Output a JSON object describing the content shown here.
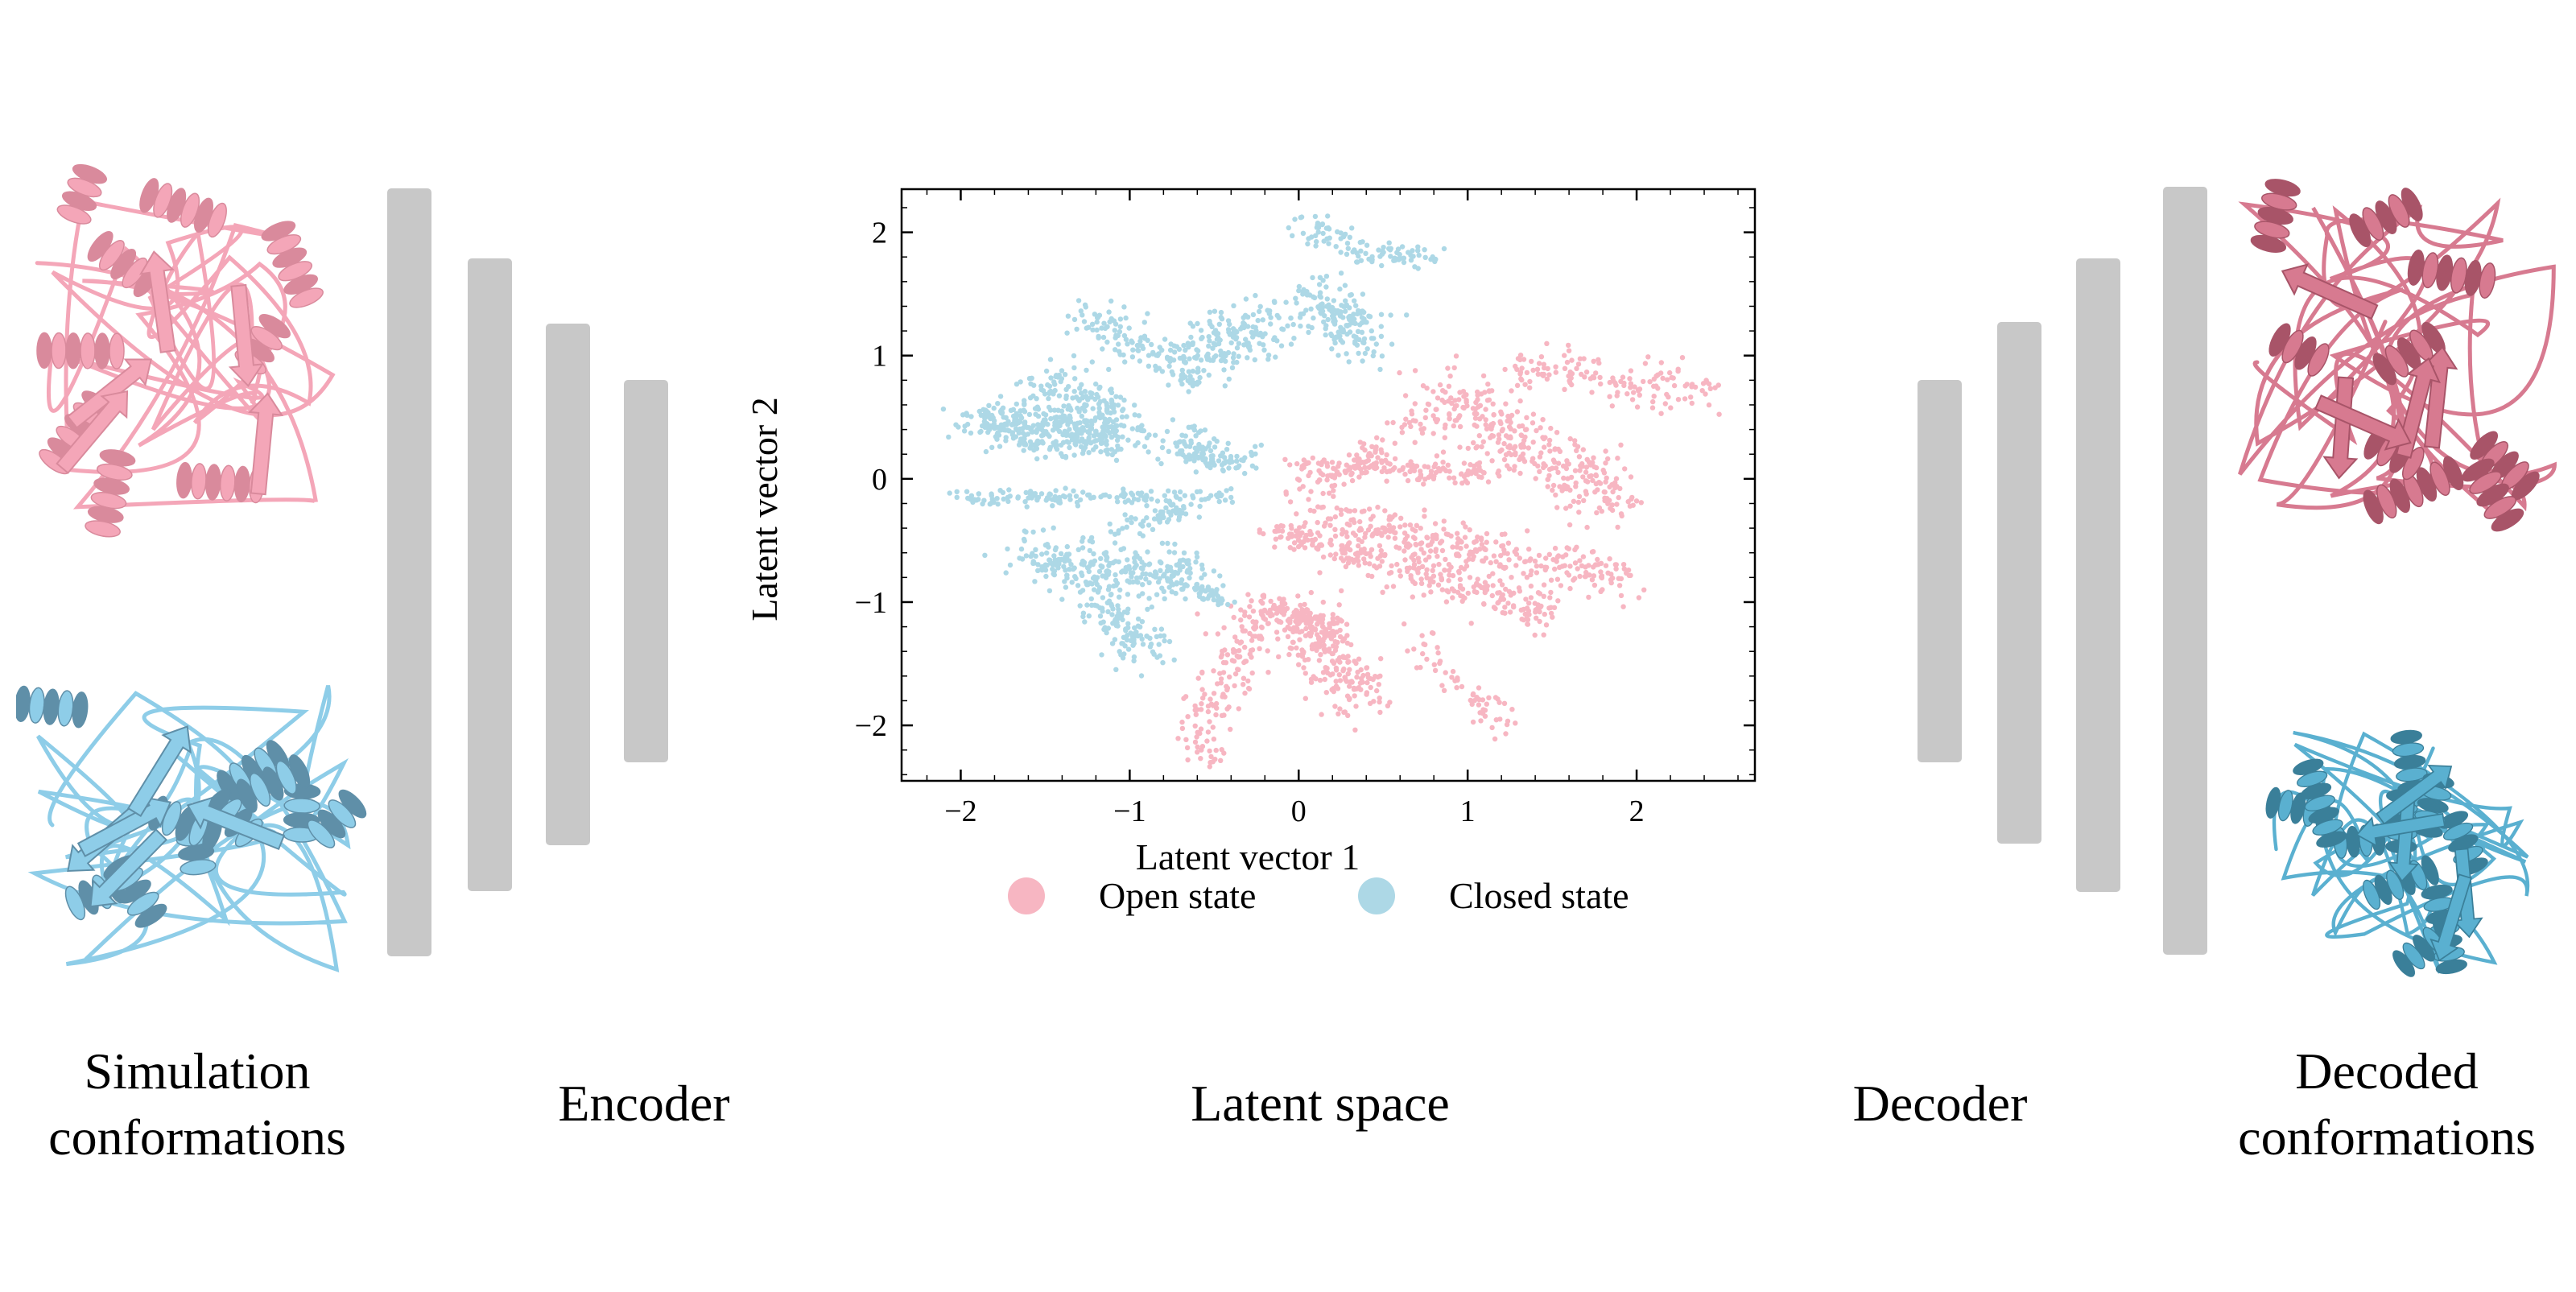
{
  "captions": {
    "simulation": "Simulation\nconformations",
    "encoder": "Encoder",
    "latent": "Latent space",
    "decoder": "Decoder",
    "decoded": "Decoded\nconformations"
  },
  "colors": {
    "open": "#f7b6c2",
    "closed": "#add8e6",
    "open_structure": "#f4a6b8",
    "closed_structure": "#8ecde8",
    "decoded_open_structure": "#d77a90",
    "decoded_closed_structure": "#5ab0d0",
    "layer": "#c8c8c8"
  },
  "icons": {
    "simulation_open": "protein-ribbon-icon",
    "simulation_closed": "protein-ribbon-icon",
    "decoded_open": "protein-ribbon-icon",
    "decoded_closed": "protein-ribbon-icon"
  },
  "encoder_layers": 4,
  "decoder_layers": 4,
  "chart_data": {
    "type": "scatter",
    "xlabel": "Latent vector 1",
    "ylabel": "Latent vector 2",
    "xlim": [
      -2.35,
      2.7
    ],
    "ylim": [
      -2.45,
      2.35
    ],
    "xticks": [
      -2,
      -1,
      0,
      1,
      2
    ],
    "yticks": [
      -2,
      -1,
      0,
      1,
      2
    ],
    "xtick_labels": [
      "−2",
      "−1",
      "0",
      "1",
      "2"
    ],
    "ytick_labels": [
      "−2",
      "−1",
      "0",
      "1",
      "2"
    ],
    "legend_position": "below",
    "series": [
      {
        "name": "Open state",
        "color": "#f7b6c2",
        "clusters": [
          {
            "x": [
              0.8,
              1.9
            ],
            "y": [
              0.75,
              -0.2
            ],
            "n": 320,
            "spread": 0.12
          },
          {
            "x": [
              0.0,
              1.1
            ],
            "y": [
              0.1,
              0.05
            ],
            "n": 150,
            "spread": 0.05
          },
          {
            "x": [
              0.1,
              1.9
            ],
            "y": [
              -0.3,
              -0.8
            ],
            "n": 300,
            "spread": 0.09
          },
          {
            "x": [
              0.3,
              1.5
            ],
            "y": [
              -0.6,
              -1.1
            ],
            "n": 200,
            "spread": 0.08
          },
          {
            "x": [
              1.3,
              2.4
            ],
            "y": [
              0.9,
              0.7
            ],
            "n": 140,
            "spread": 0.09
          },
          {
            "x": [
              -0.2,
              0.4
            ],
            "y": [
              -0.4,
              -0.65
            ],
            "n": 90,
            "spread": 0.05
          },
          {
            "x": [
              0.05,
              0.35
            ],
            "y": [
              -1.1,
              -1.8
            ],
            "n": 220,
            "spread": 0.1
          },
          {
            "x": [
              -0.2,
              -0.6
            ],
            "y": [
              -1.0,
              -2.2
            ],
            "n": 170,
            "spread": 0.09
          },
          {
            "x": [
              -0.2,
              0.2
            ],
            "y": [
              -1.0,
              -1.3
            ],
            "n": 90,
            "spread": 0.05
          },
          {
            "x": [
              0.0,
              0.8
            ],
            "y": [
              -0.2,
              0.6
            ],
            "n": 90,
            "spread": 0.06
          },
          {
            "x": [
              0.7,
              1.2
            ],
            "y": [
              -1.3,
              -2.0
            ],
            "n": 60,
            "spread": 0.08
          }
        ]
      },
      {
        "name": "Closed state",
        "color": "#add8e6",
        "clusters": [
          {
            "x": [
              -1.9,
              -1.0
            ],
            "y": [
              0.45,
              0.35
            ],
            "n": 380,
            "spread": 0.1
          },
          {
            "x": [
              -1.5,
              -1.1
            ],
            "y": [
              0.8,
              0.55
            ],
            "n": 120,
            "spread": 0.1
          },
          {
            "x": [
              -1.6,
              -0.6
            ],
            "y": [
              -0.65,
              -0.8
            ],
            "n": 280,
            "spread": 0.1
          },
          {
            "x": [
              -1.2,
              -0.9
            ],
            "y": [
              -1.0,
              -1.4
            ],
            "n": 120,
            "spread": 0.08
          },
          {
            "x": [
              -2.1,
              -0.4
            ],
            "y": [
              -0.15,
              -0.15
            ],
            "n": 140,
            "spread": 0.03
          },
          {
            "x": [
              -0.65,
              -0.1
            ],
            "y": [
              0.95,
              1.3
            ],
            "n": 180,
            "spread": 0.12
          },
          {
            "x": [
              0.05,
              0.45
            ],
            "y": [
              1.5,
              1.1
            ],
            "n": 160,
            "spread": 0.1
          },
          {
            "x": [
              0.3,
              0.85
            ],
            "y": [
              1.85,
              1.8
            ],
            "n": 60,
            "spread": 0.05
          },
          {
            "x": [
              -0.7,
              -0.4
            ],
            "y": [
              0.3,
              0.1
            ],
            "n": 110,
            "spread": 0.08
          },
          {
            "x": [
              -1.25,
              -0.55
            ],
            "y": [
              1.35,
              0.75
            ],
            "n": 120,
            "spread": 0.08
          },
          {
            "x": [
              0.0,
              0.3
            ],
            "y": [
              2.05,
              1.9
            ],
            "n": 40,
            "spread": 0.07
          },
          {
            "x": [
              -1.1,
              -0.6
            ],
            "y": [
              -0.4,
              -0.25
            ],
            "n": 50,
            "spread": 0.05
          },
          {
            "x": [
              -0.6,
              -0.45
            ],
            "y": [
              -0.9,
              -1.0
            ],
            "n": 40,
            "spread": 0.04
          }
        ]
      }
    ]
  }
}
